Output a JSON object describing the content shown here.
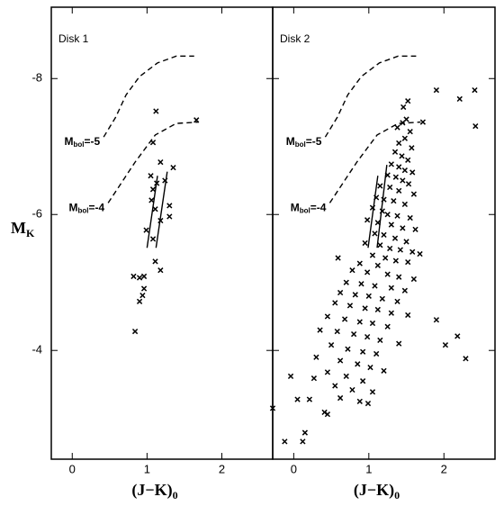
{
  "chart_data": [
    {
      "type": "scatter",
      "title": "Disk 1",
      "xlabel": {
        "text": "(J−K)",
        "sub": "0"
      },
      "ylabel": {
        "text": "M",
        "sub": "K"
      },
      "xlim": [
        -0.28,
        2.68
      ],
      "ylim": [
        -2.4,
        -9.05
      ],
      "xticks": [
        0,
        1,
        2
      ],
      "yticks": [
        -8,
        -6,
        -4
      ],
      "show_ytick_labels": true,
      "color": "#000000",
      "marker": "x",
      "x": [
        1.66,
        1.12,
        1.08,
        1.18,
        1.05,
        1.35,
        1.24,
        1.13,
        1.08,
        1.06,
        1.3,
        1.11,
        1.18,
        1.3,
        0.99,
        1.08,
        1.11,
        1.18,
        0.82,
        0.9,
        0.96,
        0.96,
        0.94,
        0.9,
        0.84
      ],
      "y": [
        -7.39,
        -7.52,
        -7.06,
        -6.77,
        -6.57,
        -6.69,
        -6.5,
        -6.46,
        -6.37,
        -6.21,
        -6.13,
        -6.08,
        -5.91,
        -5.97,
        -5.77,
        -5.64,
        -5.31,
        -5.18,
        -5.09,
        -5.07,
        -5.09,
        -4.91,
        -4.81,
        -4.72,
        -4.28
      ],
      "lines": [
        {
          "dash": true,
          "x": [
            0.42,
            0.58,
            0.72,
            0.9,
            1.14,
            1.39,
            1.63
          ],
          "y": [
            -7.14,
            -7.43,
            -7.76,
            -8.03,
            -8.23,
            -8.33,
            -8.33
          ]
        },
        {
          "dash": true,
          "x": [
            0.48,
            0.84,
            1.11,
            1.39,
            1.69
          ],
          "y": [
            -6.17,
            -6.77,
            -7.17,
            -7.34,
            -7.36
          ]
        },
        {
          "dash": false,
          "x": [
            1.0,
            1.14
          ],
          "y": [
            -5.51,
            -6.57
          ]
        },
        {
          "dash": false,
          "x": [
            1.12,
            1.27
          ],
          "y": [
            -5.51,
            -6.63
          ]
        }
      ],
      "annotations": [
        {
          "text": "M",
          "sub": "bol",
          "rest": "=-5"
        },
        {
          "text": "M",
          "sub": "bol",
          "rest": "=-4"
        }
      ]
    },
    {
      "type": "scatter",
      "title": "Disk 2",
      "xlabel": {
        "text": "(J−K)",
        "sub": "0"
      },
      "xlim": [
        -0.28,
        2.68
      ],
      "ylim": [
        -2.4,
        -9.05
      ],
      "xticks": [
        0,
        1,
        2
      ],
      "yticks": [
        -8,
        -6,
        -4
      ],
      "show_ytick_labels": false,
      "color": "#000000",
      "marker": "x",
      "x": [
        2.41,
        2.42,
        2.21,
        1.9,
        1.72,
        -0.28,
        -0.12,
        0.15,
        0.12,
        0.05,
        0.21,
        -0.04,
        0.45,
        0.41,
        0.27,
        1.9,
        2.18,
        2.29,
        2.02,
        0.59,
        0.99,
        1.05,
        1.52,
        1.46,
        1.5,
        1.45,
        1.38,
        1.55,
        1.48,
        1.4,
        1.57,
        1.35,
        1.44,
        1.52,
        1.3,
        1.4,
        1.48,
        1.58,
        1.25,
        1.36,
        1.45,
        1.53,
        1.15,
        1.28,
        1.4,
        1.6,
        1.1,
        1.2,
        1.33,
        1.48,
        1.05,
        1.18,
        1.25,
        1.38,
        1.55,
        0.98,
        1.12,
        1.3,
        1.45,
        1.62,
        1.08,
        1.2,
        1.35,
        1.5,
        0.95,
        1.15,
        1.28,
        1.42,
        1.58,
        1.68,
        1.05,
        1.22,
        1.36,
        1.52,
        0.88,
        1.12,
        0.78,
        0.98,
        1.25,
        1.4,
        1.6,
        0.7,
        0.9,
        1.08,
        1.3,
        1.48,
        0.62,
        0.82,
        1.0,
        1.18,
        1.38,
        0.55,
        0.75,
        0.95,
        1.12,
        1.3,
        1.52,
        0.45,
        0.68,
        0.88,
        1.05,
        1.25,
        0.35,
        0.58,
        0.8,
        0.98,
        1.15,
        1.4,
        0.5,
        0.72,
        0.92,
        1.1,
        0.3,
        0.62,
        0.85,
        1.02,
        1.2,
        0.45,
        0.7,
        0.92,
        0.55,
        0.78,
        0.62,
        0.88
      ],
      "y": [
        -7.83,
        -7.3,
        -7.7,
        -7.83,
        -7.36,
        -3.15,
        -2.66,
        -2.79,
        -2.66,
        -3.28,
        -3.28,
        -3.62,
        -3.06,
        -3.09,
        -3.59,
        -4.45,
        -4.21,
        -3.88,
        -4.08,
        -5.36,
        -3.22,
        -3.39,
        -7.67,
        -7.58,
        -7.4,
        -7.35,
        -7.28,
        -7.22,
        -7.12,
        -7.05,
        -6.98,
        -6.92,
        -6.86,
        -6.8,
        -6.74,
        -6.7,
        -6.65,
        -6.62,
        -6.58,
        -6.55,
        -6.5,
        -6.45,
        -6.42,
        -6.4,
        -6.35,
        -6.3,
        -6.25,
        -6.22,
        -6.2,
        -6.15,
        -6.1,
        -6.05,
        -6.0,
        -5.98,
        -5.95,
        -5.92,
        -5.88,
        -5.85,
        -5.8,
        -5.78,
        -5.72,
        -5.7,
        -5.65,
        -5.6,
        -5.58,
        -5.55,
        -5.5,
        -5.48,
        -5.45,
        -5.42,
        -5.4,
        -5.36,
        -5.32,
        -5.3,
        -5.28,
        -5.25,
        -5.18,
        -5.15,
        -5.12,
        -5.08,
        -5.05,
        -5.0,
        -4.98,
        -4.95,
        -4.92,
        -4.88,
        -4.85,
        -4.82,
        -4.8,
        -4.76,
        -4.72,
        -4.7,
        -4.66,
        -4.62,
        -4.6,
        -4.55,
        -4.52,
        -4.5,
        -4.46,
        -4.42,
        -4.4,
        -4.35,
        -4.3,
        -4.28,
        -4.24,
        -4.2,
        -4.15,
        -4.1,
        -4.08,
        -4.02,
        -3.98,
        -3.95,
        -3.9,
        -3.85,
        -3.8,
        -3.75,
        -3.7,
        -3.68,
        -3.62,
        -3.55,
        -3.48,
        -3.42,
        -3.3,
        -3.25
      ],
      "lines": [
        {
          "dash": true,
          "x": [
            0.42,
            0.58,
            0.72,
            0.9,
            1.14,
            1.39,
            1.63
          ],
          "y": [
            -7.14,
            -7.43,
            -7.76,
            -8.03,
            -8.23,
            -8.33,
            -8.33
          ]
        },
        {
          "dash": true,
          "x": [
            0.48,
            0.84,
            1.11,
            1.39,
            1.69
          ],
          "y": [
            -6.17,
            -6.77,
            -7.17,
            -7.34,
            -7.36
          ]
        },
        {
          "dash": false,
          "x": [
            0.99,
            1.12
          ],
          "y": [
            -5.51,
            -6.57
          ]
        },
        {
          "dash": false,
          "x": [
            1.11,
            1.24
          ],
          "y": [
            -5.51,
            -6.73
          ]
        }
      ],
      "annotations": [
        {
          "text": "M",
          "sub": "bol",
          "rest": "=-5"
        },
        {
          "text": "M",
          "sub": "bol",
          "rest": "=-4"
        }
      ]
    }
  ]
}
